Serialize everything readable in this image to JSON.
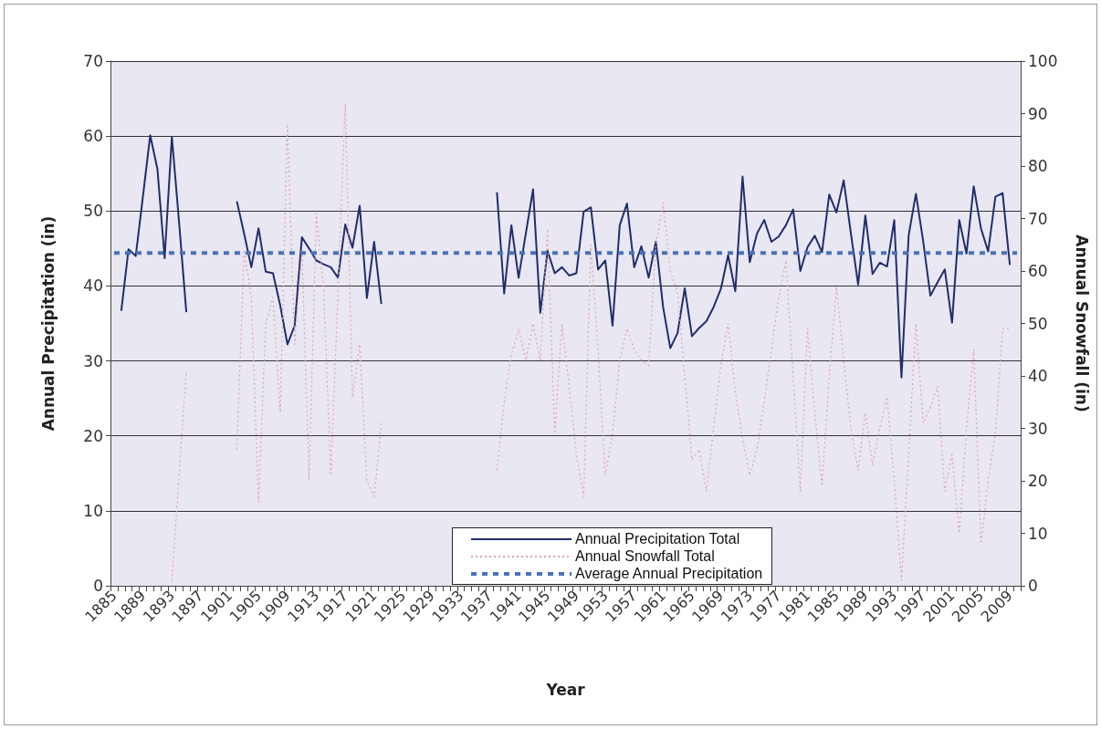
{
  "chart_data": {
    "type": "line",
    "xlabel": "Year",
    "ylabel": "Annual Precipitation (in)",
    "y2label": "Annual Snowfall (in)",
    "categories": [
      "1885",
      null,
      null,
      null,
      "1889",
      null,
      null,
      null,
      "1893",
      null,
      null,
      null,
      "1897",
      null,
      null,
      null,
      "1901",
      null,
      null,
      null,
      "1905",
      null,
      null,
      null,
      "1909",
      null,
      null,
      null,
      "1913",
      null,
      null,
      null,
      "1917",
      null,
      null,
      null,
      "1921",
      null,
      null,
      null,
      "1925",
      null,
      null,
      null,
      "1929",
      null,
      null,
      null,
      "1933",
      null,
      null,
      null,
      "1937",
      null,
      null,
      null,
      "1941",
      null,
      null,
      null,
      "1945",
      null,
      null,
      null,
      "1949",
      null,
      null,
      null,
      "1953",
      null,
      null,
      null,
      "1957",
      null,
      null,
      null,
      "1961",
      null,
      null,
      null,
      "1965",
      null,
      null,
      null,
      "1969",
      null,
      null,
      null,
      "1973",
      null,
      null,
      null,
      "1977",
      null,
      null,
      null,
      "1981",
      null,
      null,
      null,
      "1985",
      null,
      null,
      null,
      "1989",
      null,
      null,
      null,
      "1993",
      null,
      null,
      null,
      "1997",
      null,
      null,
      null,
      "2001",
      null,
      null,
      null,
      "2005",
      null,
      null,
      null,
      "2009",
      null
    ],
    "series": [
      {
        "name": "Annual Precipitation Total",
        "color": "#1f2f6b",
        "line_style": "solid",
        "values": [
          null,
          36.7,
          44.9,
          44.0,
          52,
          60.1,
          55.6,
          43.7,
          59.9,
          48.5,
          36.5,
          null,
          null,
          null,
          null,
          null,
          null,
          51.3,
          47,
          42.5,
          47.7,
          41.9,
          41.7,
          37.4,
          32.2,
          34.7,
          46.5,
          45.0,
          43.4,
          42.9,
          42.5,
          41.1,
          48.2,
          45.1,
          50.7,
          38.4,
          45.9,
          37.6,
          null,
          null,
          null,
          null,
          null,
          null,
          null,
          null,
          null,
          null,
          null,
          null,
          null,
          null,
          null,
          52.5,
          39,
          48.1,
          41.1,
          47,
          52.9,
          36.4,
          44.7,
          41.7,
          42.5,
          41.4,
          41.7,
          49.9,
          50.5,
          42.2,
          43.4,
          34.7,
          48.1,
          51,
          42.5,
          45.3,
          41.1,
          45.9,
          37.2,
          31.7,
          33.7,
          39.7,
          33.3,
          34.4,
          35.3,
          37.2,
          39.6,
          44.1,
          39.3,
          54.6,
          43.2,
          47,
          48.8,
          45.9,
          46.6,
          48.1,
          50.2,
          42,
          45.2,
          46.7,
          44.5,
          52.2,
          49.8,
          54.1,
          47,
          40.2,
          49.4,
          41.6,
          43.1,
          42.6,
          48.8,
          27.8,
          46.8,
          52.3,
          46,
          38.7,
          40.5,
          42.2,
          35.1,
          48.8,
          44.3,
          53.3,
          47.7,
          44.6,
          51.9,
          52.4,
          42.8,
          null
        ]
      },
      {
        "name": "Annual Snowfall Total",
        "color": "#e0a3b4",
        "line_style": "dotted",
        "axis": "y2",
        "values": [
          null,
          null,
          null,
          null,
          null,
          null,
          null,
          null,
          1,
          21,
          41,
          null,
          null,
          null,
          null,
          null,
          null,
          26,
          64,
          55,
          16,
          50,
          55,
          33,
          88,
          46,
          64,
          20,
          71,
          57,
          21,
          56,
          92,
          36,
          46,
          20,
          17,
          31,
          null,
          null,
          null,
          null,
          null,
          null,
          null,
          null,
          null,
          null,
          null,
          null,
          null,
          null,
          null,
          22,
          35,
          44,
          49,
          43,
          50,
          43,
          68,
          29,
          50,
          38,
          25,
          17,
          65,
          45,
          21,
          29,
          43,
          49,
          45,
          43,
          42,
          65,
          73,
          60,
          56,
          40,
          24,
          26,
          18,
          30,
          42,
          50,
          37,
          28,
          21,
          26,
          35,
          45,
          55,
          62,
          40,
          18,
          49,
          33,
          19,
          40,
          57,
          43,
          30,
          22,
          33,
          23,
          30,
          36,
          20,
          1,
          25,
          50,
          31,
          34,
          38,
          18,
          25,
          10,
          30,
          45,
          8,
          20,
          29,
          49,
          49,
          null
        ]
      },
      {
        "name": "Average Annual Precipitation",
        "color": "#4a72b8",
        "line_style": "dashed",
        "values": [
          44.4,
          44.4,
          44.4,
          44.4,
          44.4,
          44.4,
          44.4,
          44.4,
          44.4,
          44.4,
          44.4,
          44.4,
          44.4,
          44.4,
          44.4,
          44.4,
          44.4,
          44.4,
          44.4,
          44.4,
          44.4,
          44.4,
          44.4,
          44.4,
          44.4,
          44.4,
          44.4,
          44.4,
          44.4,
          44.4,
          44.4,
          44.4,
          44.4,
          44.4,
          44.4,
          44.4,
          44.4,
          44.4,
          44.4,
          44.4,
          44.4,
          44.4,
          44.4,
          44.4,
          44.4,
          44.4,
          44.4,
          44.4,
          44.4,
          44.4,
          44.4,
          44.4,
          44.4,
          44.4,
          44.4,
          44.4,
          44.4,
          44.4,
          44.4,
          44.4,
          44.4,
          44.4,
          44.4,
          44.4,
          44.4,
          44.4,
          44.4,
          44.4,
          44.4,
          44.4,
          44.4,
          44.4,
          44.4,
          44.4,
          44.4,
          44.4,
          44.4,
          44.4,
          44.4,
          44.4,
          44.4,
          44.4,
          44.4,
          44.4,
          44.4,
          44.4,
          44.4,
          44.4,
          44.4,
          44.4,
          44.4,
          44.4,
          44.4,
          44.4,
          44.4,
          44.4,
          44.4,
          44.4,
          44.4,
          44.4,
          44.4,
          44.4,
          44.4,
          44.4,
          44.4,
          44.4,
          44.4,
          44.4,
          44.4,
          44.4,
          44.4,
          44.4,
          44.4,
          44.4,
          44.4,
          44.4,
          44.4,
          44.4,
          44.4,
          44.4,
          44.4,
          44.4,
          44.4,
          44.4,
          44.4,
          44.4
        ]
      }
    ],
    "ylim": [
      0,
      70
    ],
    "yticks": [
      0,
      10,
      20,
      30,
      40,
      50,
      60,
      70
    ],
    "y2lim": [
      0,
      100
    ],
    "y2ticks": [
      0,
      10,
      20,
      30,
      40,
      50,
      60,
      70,
      80,
      90,
      100
    ],
    "grid": "y",
    "legend": "bottom",
    "marker": "none"
  }
}
